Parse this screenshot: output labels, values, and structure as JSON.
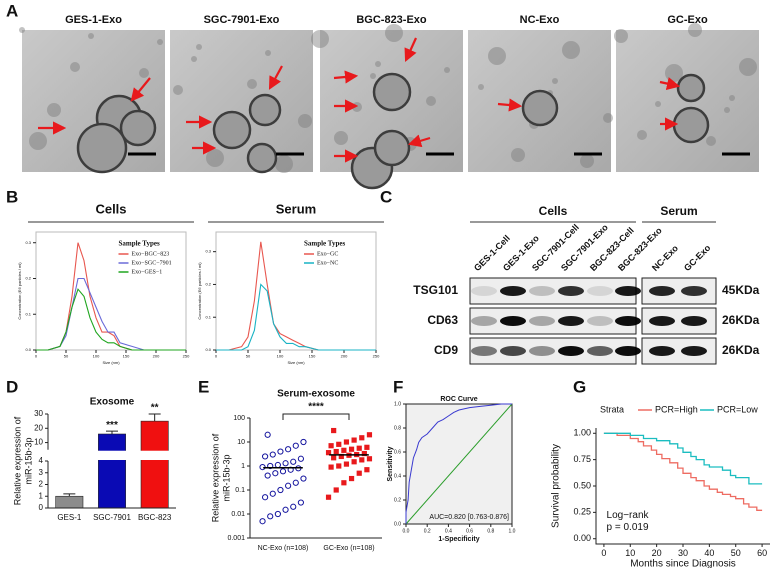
{
  "panel_labels": [
    "A",
    "B",
    "C",
    "D",
    "E",
    "F",
    "G"
  ],
  "tem": {
    "labels": [
      "GES-1-Exo",
      "SGC-7901-Exo",
      "BGC-823-Exo",
      "NC-Exo",
      "GC-Exo"
    ]
  },
  "blot": {
    "groups": [
      "Cells",
      "Serum"
    ],
    "lanes": [
      "GES-1-Cell",
      "GES-1-Exo",
      "SGC-7901-Cell",
      "SGC-7901-Exo",
      "BGC-823-Cell",
      "BGC-823-Exo",
      "NC-Exo",
      "GC-Exo"
    ],
    "proteins": [
      "TSG101",
      "CD63",
      "CD9"
    ],
    "sizes": [
      "45KDa",
      "26KDa",
      "26KDa"
    ]
  },
  "chart_data": [
    {
      "type": "line",
      "title": "Cells",
      "legend_title": "Sample Types",
      "xlabel": "Size (nm)",
      "ylabel": "Concentration (E6 particles / ml)",
      "x": [
        0,
        20,
        40,
        50,
        60,
        70,
        80,
        90,
        100,
        110,
        120,
        130,
        140,
        160,
        180,
        200,
        250
      ],
      "xlim": [
        0,
        250
      ],
      "xticks": [
        0,
        50,
        100,
        150,
        200,
        250
      ],
      "ylim": [
        0,
        0.33
      ],
      "yticks": [
        {
          "value": 0,
          "label": "0.0"
        },
        0.1,
        0.2,
        0.3
      ],
      "series": [
        {
          "name": "Exo−BGC−823",
          "color": "#e8574f",
          "values": [
            0,
            0,
            0.01,
            0.05,
            0.15,
            0.3,
            0.25,
            0.15,
            0.09,
            0.05,
            0.05,
            0.04,
            0.01,
            0,
            0,
            0,
            0
          ]
        },
        {
          "name": "Exo−SGC−7901",
          "color": "#6a6ad8",
          "values": [
            0,
            0,
            0.01,
            0.04,
            0.12,
            0.2,
            0.2,
            0.16,
            0.12,
            0.08,
            0.05,
            0.05,
            0.02,
            0.01,
            0,
            0,
            0
          ]
        },
        {
          "name": "Exo−GES−1",
          "color": "#1fa51f",
          "values": [
            0,
            0,
            0.01,
            0.05,
            0.12,
            0.17,
            0.15,
            0.09,
            0.05,
            0.03,
            0.02,
            0.02,
            0.01,
            0,
            0,
            0,
            0
          ]
        }
      ]
    },
    {
      "type": "line",
      "title": "Serum",
      "legend_title": "Sample Types",
      "xlabel": "Size (nm)",
      "ylabel": "Concentration (E6 particles / ml)",
      "x": [
        0,
        20,
        40,
        50,
        60,
        70,
        80,
        90,
        100,
        110,
        120,
        130,
        140,
        160,
        180,
        200,
        250
      ],
      "xlim": [
        0,
        250
      ],
      "xticks": [
        0,
        50,
        100,
        150,
        200,
        250
      ],
      "ylim": [
        0,
        0.36
      ],
      "yticks": [
        {
          "value": 0,
          "label": "0.0"
        },
        0.1,
        0.2,
        0.3
      ],
      "series": [
        {
          "name": "Exo−GC",
          "color": "#e8574f",
          "values": [
            0,
            0,
            0.01,
            0.04,
            0.15,
            0.33,
            0.2,
            0.08,
            0.05,
            0.04,
            0.03,
            0.02,
            0.01,
            0,
            0,
            0,
            0
          ]
        },
        {
          "name": "Exo−NC",
          "color": "#19b3c4",
          "values": [
            0,
            0,
            0,
            0.01,
            0.06,
            0.2,
            0.18,
            0.08,
            0.04,
            0.02,
            0.02,
            0.01,
            0.01,
            0,
            0,
            0,
            0
          ]
        }
      ]
    },
    {
      "type": "bar",
      "title": "Exosome",
      "ylabel": [
        "Relative expression of",
        "miR-15b-3p"
      ],
      "categories": [
        "GES-1",
        "SGC-7901",
        "BGC-823"
      ],
      "values": [
        1,
        16,
        25
      ],
      "errors": [
        0.2,
        2,
        5
      ],
      "colors": [
        "#8c8c8c",
        "#0a0ab4",
        "#f01010"
      ],
      "annotations": [
        null,
        "***",
        "**"
      ],
      "ylim": [
        0,
        30
      ],
      "yticks": [
        0,
        1,
        2,
        3,
        4,
        10,
        20,
        30
      ],
      "axis_break": [
        4,
        5
      ]
    },
    {
      "type": "strip",
      "title": "Serum-exosome",
      "ylabel": [
        "Relative expression of",
        "miR-15b-3p"
      ],
      "log": true,
      "annotation": "****",
      "ylim": [
        0.001,
        100
      ],
      "yticks": [
        0.001,
        0.01,
        0.1,
        1,
        10,
        100
      ],
      "medians": [
        0.85,
        2.9
      ],
      "series": [
        {
          "name": "NC-Exo (n=108)",
          "color": "#14149e",
          "marker": "circle",
          "values": [
            0.005,
            0.008,
            0.01,
            0.015,
            0.02,
            0.03,
            0.05,
            0.07,
            0.1,
            0.15,
            0.2,
            0.3,
            0.4,
            0.5,
            0.6,
            0.7,
            0.8,
            0.9,
            1,
            1.1,
            1.3,
            1.5,
            2,
            2.5,
            3,
            4,
            5,
            7,
            10,
            20
          ]
        },
        {
          "name": "GC-Exo (n=108)",
          "color": "#e8191c",
          "marker": "square",
          "values": [
            0.05,
            0.1,
            0.2,
            0.3,
            0.5,
            0.7,
            0.9,
            1,
            1.2,
            1.5,
            1.8,
            2,
            2.2,
            2.5,
            2.8,
            3,
            3.3,
            3.6,
            4,
            4.5,
            5,
            5.5,
            6,
            7,
            8,
            10,
            12,
            15,
            20,
            30
          ]
        }
      ]
    },
    {
      "type": "roc",
      "title": "ROC Curve",
      "xlabel": "1-Specificity",
      "ylabel": "Sensitivity",
      "annotation": "AUC=0.820 [0.763-0.876]",
      "color": "#3a3ad0",
      "diagonal_color": "#2a9d2a",
      "x": [
        0,
        0,
        0.02,
        0.03,
        0.05,
        0.07,
        0.1,
        0.12,
        0.15,
        0.2,
        0.25,
        0.3,
        0.35,
        0.4,
        0.45,
        0.5,
        0.6,
        0.7,
        0.8,
        0.9,
        1
      ],
      "values": [
        0,
        0.1,
        0.2,
        0.35,
        0.45,
        0.55,
        0.62,
        0.68,
        0.72,
        0.75,
        0.8,
        0.85,
        0.87,
        0.9,
        0.93,
        0.95,
        0.97,
        0.98,
        0.99,
        1,
        1
      ],
      "xlim": [
        0,
        1
      ],
      "ylim": [
        0,
        1
      ],
      "xticks": [
        {
          "value": 0,
          "label": "0.0"
        },
        0.2,
        0.4,
        0.6,
        0.8,
        {
          "value": 1,
          "label": "1.0"
        }
      ],
      "yticks": [
        {
          "value": 0,
          "label": "0.0"
        },
        0.2,
        0.4,
        0.6,
        0.8,
        {
          "value": 1,
          "label": "1.0"
        }
      ]
    },
    {
      "type": "km",
      "legend_title": "Strata",
      "xlabel": "Months since Diagnosis",
      "ylabel": "Survival probability",
      "annotation": [
        "Log−rank",
        "p = 0.019"
      ],
      "xlim": [
        -3,
        63
      ],
      "xticks": [
        0,
        10,
        20,
        30,
        40,
        50,
        60
      ],
      "ylim": [
        -0.05,
        1.05
      ],
      "yticks": [
        {
          "value": 0,
          "label": "0.00"
        },
        0.25,
        {
          "value": 0.5,
          "label": "0.50"
        },
        0.75,
        {
          "value": 1,
          "label": "1.00"
        }
      ],
      "series": [
        {
          "name": "PCR=High",
          "color": "#ee6c62",
          "x": [
            0,
            5,
            10,
            13,
            15,
            18,
            20,
            22,
            25,
            28,
            30,
            33,
            35,
            38,
            40,
            43,
            45,
            48,
            50,
            53,
            55,
            58,
            60
          ],
          "values": [
            1,
            0.98,
            0.95,
            0.92,
            0.88,
            0.84,
            0.8,
            0.76,
            0.72,
            0.67,
            0.62,
            0.58,
            0.55,
            0.5,
            0.47,
            0.44,
            0.42,
            0.4,
            0.38,
            0.33,
            0.3,
            0.27,
            0.27
          ]
        },
        {
          "name": "PCR=Low",
          "color": "#1bbdc0",
          "x": [
            0,
            5,
            10,
            15,
            20,
            25,
            28,
            30,
            33,
            35,
            38,
            40,
            45,
            48,
            50,
            55,
            60
          ],
          "values": [
            1,
            1,
            0.98,
            0.95,
            0.93,
            0.9,
            0.86,
            0.82,
            0.78,
            0.75,
            0.7,
            0.68,
            0.65,
            0.6,
            0.58,
            0.52,
            0.52
          ]
        }
      ]
    }
  ]
}
